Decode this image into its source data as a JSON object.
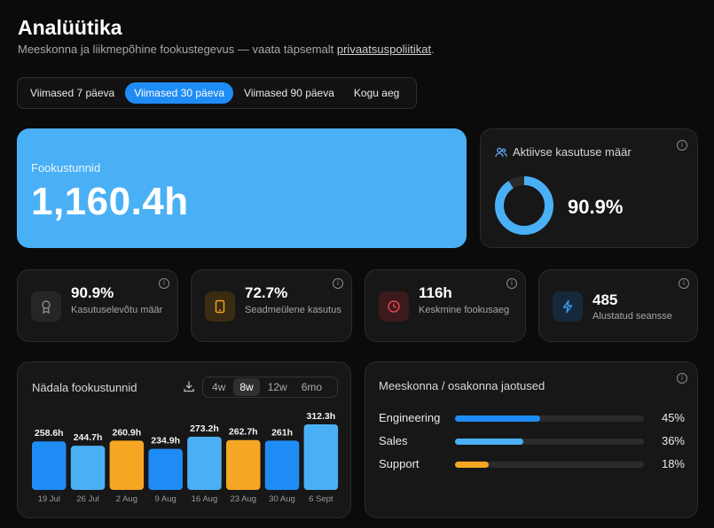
{
  "page": {
    "title": "Analüütika",
    "subtitle_prefix": "Meeskonna ja liikmepõhine fookustegevus — vaata täpsemalt ",
    "subtitle_link": "privaatsuspoliitikat",
    "subtitle_suffix": "."
  },
  "range": {
    "options": [
      "Viimased 7 päeva",
      "Viimased 30 päeva",
      "Viimased 90 päeva",
      "Kogu aeg"
    ],
    "selected": "Viimased 30 päeva"
  },
  "hero": {
    "label": "Fookustunnid",
    "value": "1,160.4h"
  },
  "usage": {
    "label": "Aktiivse kasutuse määr",
    "value": "90.9%",
    "fraction": 0.909
  },
  "stats": [
    {
      "value": "90.9%",
      "label": "Kasutuselevõtu määr",
      "icon": "award-icon",
      "color": "#8a8a8a"
    },
    {
      "value": "72.7%",
      "label": "Seadmeülene kasutus",
      "icon": "tablet-icon",
      "color": "#f5a623"
    },
    {
      "value": "116h",
      "label": "Keskmine fookusaeg",
      "icon": "clock-icon",
      "color": "#e5484d"
    },
    {
      "value": "485",
      "label": "Alustatud seansse",
      "icon": "bolt-icon",
      "color": "#3b9cf5"
    }
  ],
  "weekly": {
    "title": "Nädala fookustunnid",
    "tabs": [
      "4w",
      "8w",
      "12w",
      "6mo"
    ],
    "selected_tab": "8w"
  },
  "chart_data": {
    "type": "bar",
    "categories": [
      "19 Jul",
      "26 Jul",
      "2 Aug",
      "9 Aug",
      "16 Aug",
      "23 Aug",
      "30 Aug",
      "6 Sept"
    ],
    "values": [
      258.6,
      244.7,
      260.9,
      234.9,
      273.2,
      262.7,
      261,
      312.3
    ],
    "value_labels": [
      "258.6h",
      "244.7h",
      "260.9h",
      "234.9h",
      "273.2h",
      "262.7h",
      "261h",
      "312.3h"
    ],
    "colors": [
      "#1f8cf5",
      "#4ab0f5",
      "#f5a623",
      "#1f8cf5",
      "#4ab0f5",
      "#f5a623",
      "#1f8cf5",
      "#4ab0f5"
    ]
  },
  "team": {
    "title": "Meeskonna / osakonna jaotused",
    "rows": [
      {
        "name": "Engineering",
        "pct_label": "45%",
        "value": 0.45,
        "color": "#1f8cf5"
      },
      {
        "name": "Sales",
        "pct_label": "36%",
        "value": 0.36,
        "color": "#4ab0f5"
      },
      {
        "name": "Support",
        "pct_label": "18%",
        "value": 0.18,
        "color": "#f5a623"
      }
    ]
  },
  "colors": {
    "accent": "#1f8cf5",
    "hero_bg": "#4ab0f5",
    "track": "#2b2b2b"
  }
}
